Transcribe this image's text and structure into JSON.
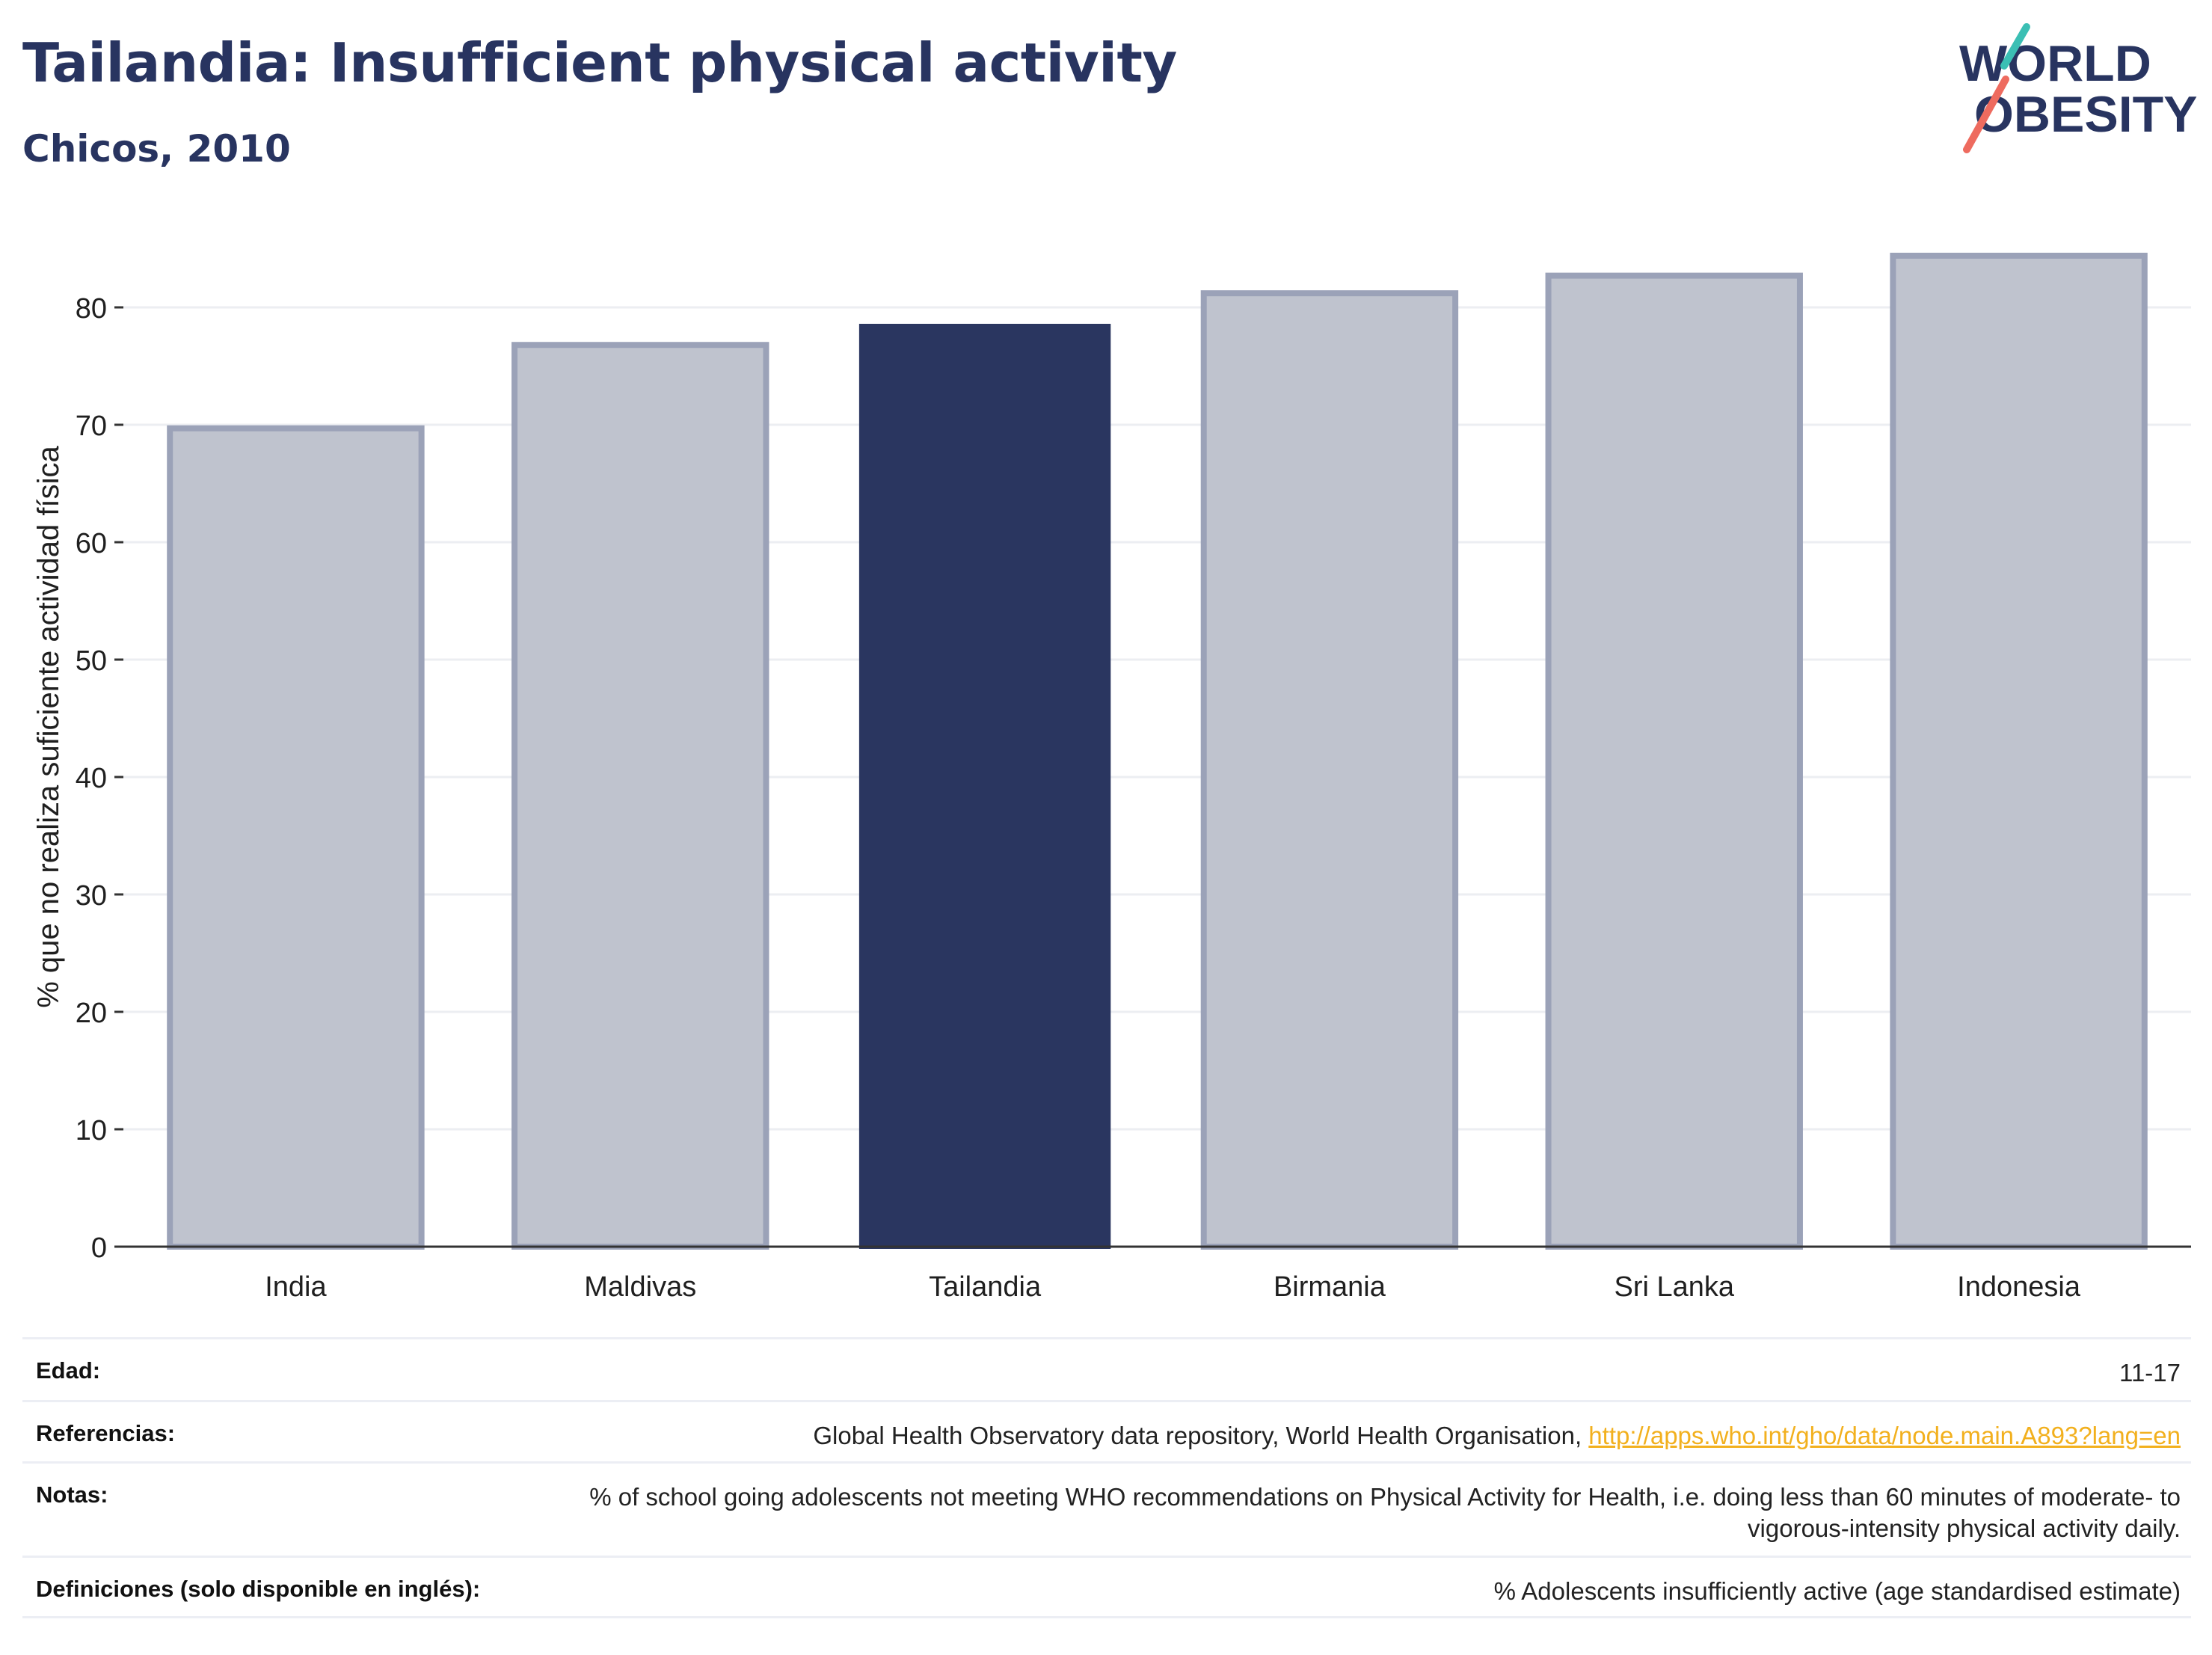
{
  "header": {
    "title": "Tailandia: Insufficient physical activity",
    "subtitle": "Chicos, 2010"
  },
  "logo": {
    "line1": "WORLD",
    "line2": "OBESITY"
  },
  "colors": {
    "highlight": "#2a3660",
    "muted_fill": "#bfc3ce",
    "muted_stroke": "#9ba2b8",
    "title": "#283460",
    "link": "#f2b01e",
    "logo_teal": "#3bbfb4",
    "logo_coral": "#ee6b5f"
  },
  "chart_data": {
    "type": "bar",
    "categories": [
      "India",
      "Maldivas",
      "Tailandia",
      "Birmania",
      "Sri Lanka",
      "Indonesia"
    ],
    "values": [
      69.7,
      76.8,
      78.6,
      81.2,
      82.7,
      84.4
    ],
    "highlighted_category": "Tailandia",
    "title": "Tailandia: Insufficient physical activity",
    "subtitle": "Chicos, 2010",
    "xlabel": "",
    "ylabel": "% que no realiza suficiente actividad física",
    "ylim": [
      0,
      88
    ],
    "yticks": [
      0,
      10,
      20,
      30,
      40,
      50,
      60,
      70,
      80
    ],
    "grid": true,
    "legend": "none"
  },
  "info": {
    "rows": [
      {
        "label": "Edad:",
        "value": "11-17"
      },
      {
        "label": "Referencias:",
        "value": "Global Health Observatory data repository, World Health Organisation, ",
        "link": "http://apps.who.int/gho/data/node.main.A893?lang=en"
      },
      {
        "label": "Notas:",
        "value": "% of school going adolescents not meeting WHO recommendations on Physical Activity for Health, i.e. doing less than 60 minutes of moderate- to vigorous-intensity physical activity daily."
      },
      {
        "label": "Definiciones (solo disponible en inglés):",
        "value": "% Adolescents insufficiently active (age standardised estimate)"
      }
    ]
  }
}
